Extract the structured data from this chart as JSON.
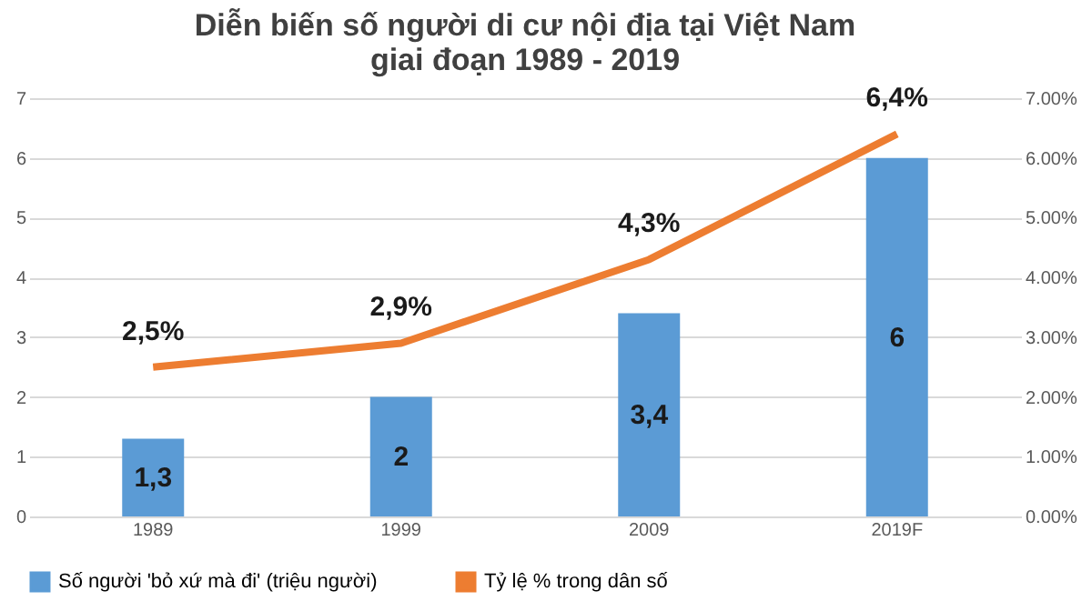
{
  "chart_data": {
    "type": "bar",
    "title": "Diễn biến số người di cư nội địa tại Việt Nam\ngiai đoạn 1989 - 2019",
    "categories": [
      "1989",
      "1999",
      "2009",
      "2019F"
    ],
    "series": [
      {
        "name": "Số người 'bỏ xứ mà đi' (triệu người)",
        "color": "#5b9bd5",
        "values": [
          1.3,
          2,
          3.4,
          6
        ],
        "value_labels": [
          "1,3",
          "2",
          "3,4",
          "6"
        ]
      },
      {
        "name": "Tỷ lệ % trong dân số",
        "type": "line",
        "axis": "y2",
        "color": "#ed7d31",
        "values": [
          2.5,
          2.9,
          4.3,
          6.4
        ],
        "value_labels": [
          "2,5%",
          "2,9%",
          "4,3%",
          "6,4%"
        ]
      }
    ],
    "ylim": [
      0,
      7
    ],
    "yticks": [
      0,
      1,
      2,
      3,
      4,
      5,
      6,
      7
    ],
    "y2lim": [
      0,
      7
    ],
    "y2ticks": [
      {
        "value": 0,
        "label": "0.00%"
      },
      {
        "value": 1,
        "label": "1.00%"
      },
      {
        "value": 2,
        "label": "2.00%"
      },
      {
        "value": 3,
        "label": "3.00%"
      },
      {
        "value": 4,
        "label": "4.00%"
      },
      {
        "value": 5,
        "label": "5.00%"
      },
      {
        "value": 6,
        "label": "6.00%"
      },
      {
        "value": 7,
        "label": "7.00%"
      }
    ],
    "grid": "y",
    "legend": "bottom",
    "marker": "none",
    "line_style": "solid"
  }
}
